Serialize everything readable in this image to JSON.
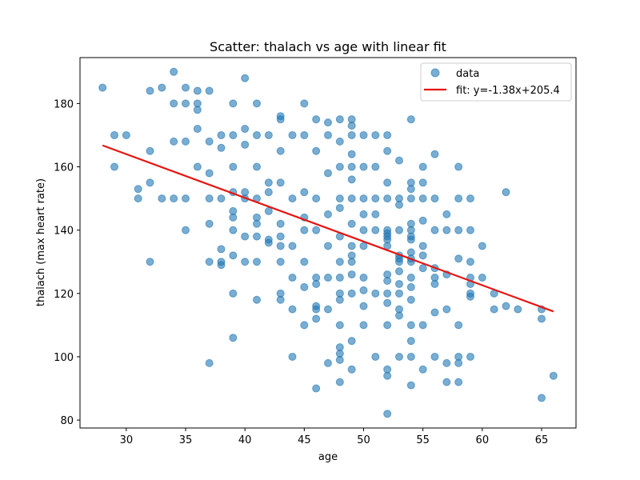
{
  "chart_data": {
    "type": "scatter",
    "title": "Scatter: thalach vs age with linear fit",
    "xlabel": "age",
    "ylabel": "thalach (max heart rate)",
    "xlim": [
      26.1,
      67.9
    ],
    "ylim": [
      77.5,
      194.5
    ],
    "xticks": [
      30,
      35,
      40,
      45,
      50,
      55,
      60,
      65
    ],
    "yticks": [
      80,
      100,
      120,
      140,
      160,
      180
    ],
    "grid": false,
    "legend_position": "top-right",
    "colors": {
      "points": "#1f77b4",
      "fit": "#e8140f"
    },
    "series": [
      {
        "name": "data",
        "kind": "points",
        "points": [
          [
            28,
            185
          ],
          [
            29,
            170
          ],
          [
            29,
            160
          ],
          [
            30,
            170
          ],
          [
            31,
            153
          ],
          [
            31,
            150
          ],
          [
            32,
            184
          ],
          [
            32,
            165
          ],
          [
            32,
            155
          ],
          [
            32,
            130
          ],
          [
            33,
            185
          ],
          [
            33,
            150
          ],
          [
            34,
            190
          ],
          [
            34,
            180
          ],
          [
            34,
            168
          ],
          [
            34,
            150
          ],
          [
            35,
            185
          ],
          [
            35,
            180
          ],
          [
            35,
            168
          ],
          [
            35,
            150
          ],
          [
            35,
            140
          ],
          [
            36,
            184
          ],
          [
            36,
            180
          ],
          [
            36,
            178
          ],
          [
            36,
            172
          ],
          [
            36,
            160
          ],
          [
            37,
            184
          ],
          [
            37,
            168
          ],
          [
            37,
            158
          ],
          [
            37,
            150
          ],
          [
            37,
            142
          ],
          [
            37,
            130
          ],
          [
            37,
            98
          ],
          [
            38,
            170
          ],
          [
            38,
            166
          ],
          [
            38,
            150
          ],
          [
            38,
            134
          ],
          [
            38,
            130
          ],
          [
            38,
            129
          ],
          [
            39,
            180
          ],
          [
            39,
            170
          ],
          [
            39,
            160
          ],
          [
            39,
            152
          ],
          [
            39,
            146
          ],
          [
            39,
            144
          ],
          [
            39,
            140
          ],
          [
            39,
            132
          ],
          [
            39,
            120
          ],
          [
            39,
            106
          ],
          [
            40,
            188
          ],
          [
            40,
            172
          ],
          [
            40,
            167
          ],
          [
            40,
            152
          ],
          [
            40,
            150
          ],
          [
            40,
            138
          ],
          [
            40,
            130
          ],
          [
            41,
            180
          ],
          [
            41,
            170
          ],
          [
            41,
            160
          ],
          [
            41,
            150
          ],
          [
            41,
            144
          ],
          [
            41,
            142
          ],
          [
            41,
            138
          ],
          [
            41,
            130
          ],
          [
            41,
            118
          ],
          [
            42,
            170
          ],
          [
            42,
            155
          ],
          [
            42,
            152
          ],
          [
            42,
            146
          ],
          [
            42,
            137
          ],
          [
            42,
            136
          ],
          [
            43,
            176
          ],
          [
            43,
            175
          ],
          [
            43,
            165
          ],
          [
            43,
            155
          ],
          [
            43,
            142
          ],
          [
            43,
            138
          ],
          [
            43,
            135
          ],
          [
            43,
            130
          ],
          [
            43,
            120
          ],
          [
            43,
            118
          ],
          [
            44,
            170
          ],
          [
            44,
            150
          ],
          [
            44,
            135
          ],
          [
            44,
            125
          ],
          [
            44,
            115
          ],
          [
            44,
            100
          ],
          [
            45,
            180
          ],
          [
            45,
            170
          ],
          [
            45,
            152
          ],
          [
            45,
            144
          ],
          [
            45,
            140
          ],
          [
            45,
            130
          ],
          [
            45,
            122
          ],
          [
            45,
            110
          ],
          [
            46,
            175
          ],
          [
            46,
            165
          ],
          [
            46,
            150
          ],
          [
            46,
            140
          ],
          [
            46,
            125
          ],
          [
            46,
            123
          ],
          [
            46,
            116
          ],
          [
            46,
            115
          ],
          [
            46,
            112
          ],
          [
            46,
            90
          ],
          [
            47,
            174
          ],
          [
            47,
            170
          ],
          [
            47,
            158
          ],
          [
            47,
            145
          ],
          [
            47,
            135
          ],
          [
            47,
            125
          ],
          [
            47,
            115
          ],
          [
            47,
            98
          ],
          [
            48,
            175
          ],
          [
            48,
            168
          ],
          [
            48,
            160
          ],
          [
            48,
            150
          ],
          [
            48,
            147
          ],
          [
            48,
            138
          ],
          [
            48,
            130
          ],
          [
            48,
            125
          ],
          [
            48,
            120
          ],
          [
            48,
            118
          ],
          [
            48,
            110
          ],
          [
            48,
            103
          ],
          [
            48,
            101
          ],
          [
            48,
            99
          ],
          [
            48,
            92
          ],
          [
            49,
            175
          ],
          [
            49,
            173
          ],
          [
            49,
            170
          ],
          [
            49,
            164
          ],
          [
            49,
            160
          ],
          [
            49,
            156
          ],
          [
            49,
            150
          ],
          [
            49,
            142
          ],
          [
            49,
            135
          ],
          [
            49,
            132
          ],
          [
            49,
            130
          ],
          [
            49,
            126
          ],
          [
            49,
            120
          ],
          [
            49,
            105
          ],
          [
            49,
            96
          ],
          [
            50,
            170
          ],
          [
            50,
            160
          ],
          [
            50,
            150
          ],
          [
            50,
            145
          ],
          [
            50,
            140
          ],
          [
            50,
            135
          ],
          [
            50,
            125
          ],
          [
            50,
            121
          ],
          [
            50,
            116
          ],
          [
            50,
            110
          ],
          [
            51,
            170
          ],
          [
            51,
            160
          ],
          [
            51,
            150
          ],
          [
            51,
            145
          ],
          [
            51,
            140
          ],
          [
            51,
            120
          ],
          [
            51,
            100
          ],
          [
            52,
            170
          ],
          [
            52,
            165
          ],
          [
            52,
            155
          ],
          [
            52,
            150
          ],
          [
            52,
            140
          ],
          [
            52,
            139
          ],
          [
            52,
            138
          ],
          [
            52,
            137
          ],
          [
            52,
            135
          ],
          [
            52,
            126
          ],
          [
            52,
            124
          ],
          [
            52,
            120
          ],
          [
            52,
            117
          ],
          [
            52,
            110
          ],
          [
            52,
            96
          ],
          [
            52,
            94
          ],
          [
            52,
            82
          ],
          [
            53,
            162
          ],
          [
            53,
            150
          ],
          [
            53,
            148
          ],
          [
            53,
            140
          ],
          [
            53,
            132
          ],
          [
            53,
            131
          ],
          [
            53,
            130
          ],
          [
            53,
            127
          ],
          [
            53,
            123
          ],
          [
            53,
            120
          ],
          [
            53,
            115
          ],
          [
            53,
            113
          ],
          [
            53,
            100
          ],
          [
            54,
            175
          ],
          [
            54,
            155
          ],
          [
            54,
            153
          ],
          [
            54,
            150
          ],
          [
            54,
            142
          ],
          [
            54,
            140
          ],
          [
            54,
            138
          ],
          [
            54,
            137
          ],
          [
            54,
            133
          ],
          [
            54,
            131
          ],
          [
            54,
            130
          ],
          [
            54,
            125
          ],
          [
            54,
            122
          ],
          [
            54,
            118
          ],
          [
            54,
            110
          ],
          [
            54,
            105
          ],
          [
            54,
            100
          ],
          [
            54,
            91
          ],
          [
            55,
            160
          ],
          [
            55,
            155
          ],
          [
            55,
            150
          ],
          [
            55,
            143
          ],
          [
            55,
            135
          ],
          [
            55,
            132
          ],
          [
            55,
            128
          ],
          [
            55,
            110
          ],
          [
            55,
            96
          ],
          [
            56,
            164
          ],
          [
            56,
            150
          ],
          [
            56,
            140
          ],
          [
            56,
            128
          ],
          [
            56,
            125
          ],
          [
            56,
            123
          ],
          [
            56,
            114
          ],
          [
            56,
            100
          ],
          [
            57,
            145
          ],
          [
            57,
            140
          ],
          [
            57,
            126
          ],
          [
            57,
            115
          ],
          [
            57,
            98
          ],
          [
            57,
            92
          ],
          [
            58,
            160
          ],
          [
            58,
            150
          ],
          [
            58,
            140
          ],
          [
            58,
            131
          ],
          [
            58,
            110
          ],
          [
            58,
            100
          ],
          [
            58,
            98
          ],
          [
            58,
            92
          ],
          [
            59,
            150
          ],
          [
            59,
            140
          ],
          [
            59,
            130
          ],
          [
            59,
            125
          ],
          [
            59,
            123
          ],
          [
            59,
            120
          ],
          [
            59,
            119
          ],
          [
            59,
            100
          ],
          [
            60,
            135
          ],
          [
            60,
            125
          ],
          [
            61,
            120
          ],
          [
            61,
            115
          ],
          [
            62,
            152
          ],
          [
            62,
            116
          ],
          [
            63,
            115
          ],
          [
            65,
            115
          ],
          [
            65,
            112
          ],
          [
            65,
            87
          ],
          [
            66,
            94
          ]
        ]
      },
      {
        "name": "fit: y=-1.38x+205.4",
        "kind": "line",
        "slope": -1.38,
        "intercept": 205.4,
        "x": [
          28,
          66
        ]
      }
    ]
  }
}
